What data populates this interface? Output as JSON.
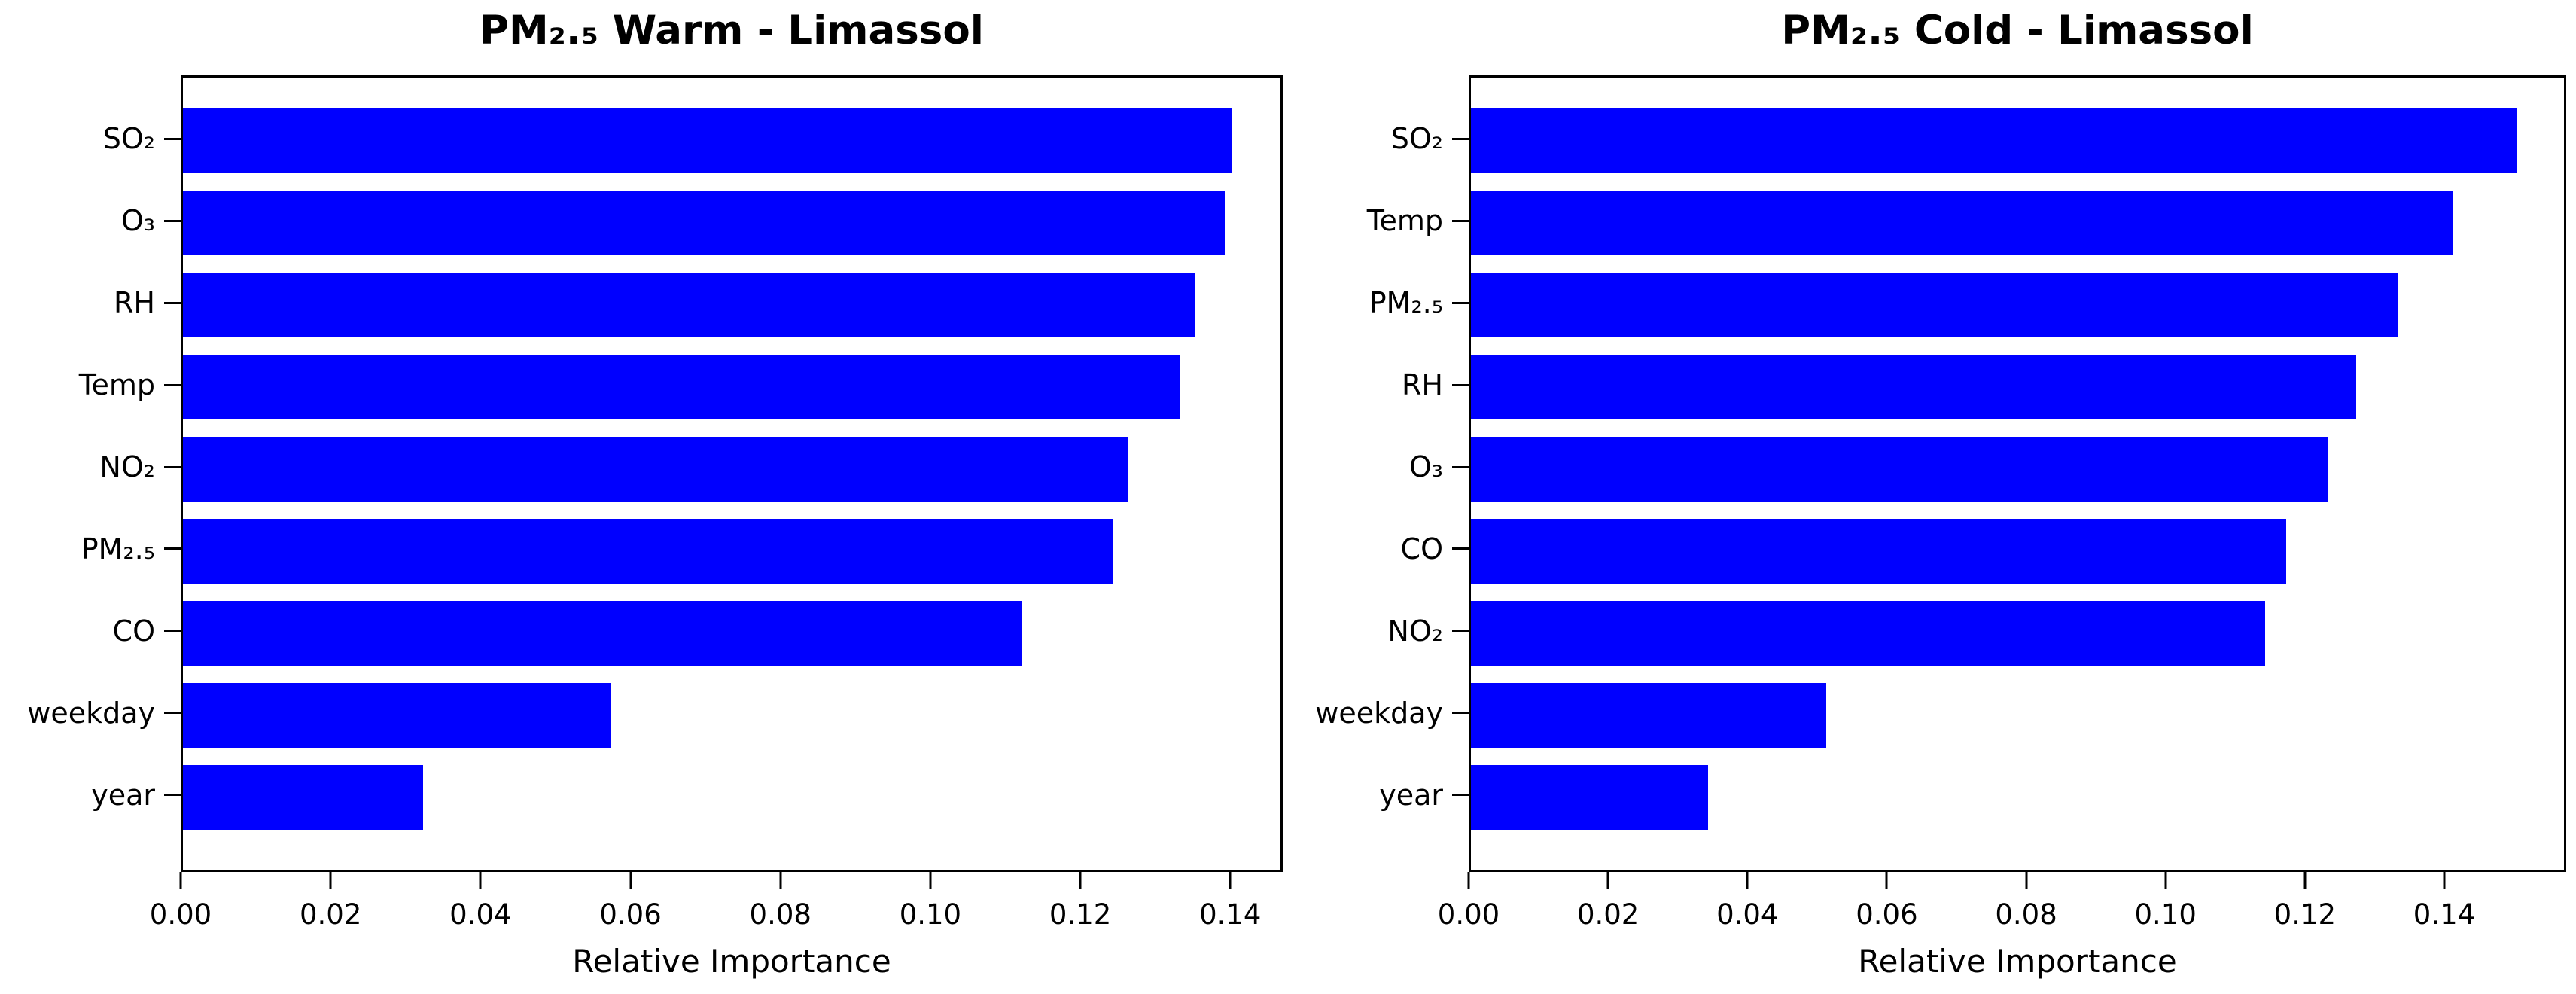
{
  "figure": {
    "background_color": "#ffffff",
    "axis_color": "#000000",
    "text_color": "#000000"
  },
  "chart_data": [
    {
      "type": "bar",
      "orientation": "horizontal",
      "title": "PM₂.₅ Warm - Limassol",
      "xlabel": "Relative Importance",
      "categories": [
        "SO₂",
        "O₃",
        "RH",
        "Temp",
        "NO₂",
        "PM₂.₅",
        "CO",
        "weekday",
        "year"
      ],
      "values": [
        0.14,
        0.139,
        0.135,
        0.133,
        0.126,
        0.124,
        0.112,
        0.057,
        0.032
      ],
      "bar_color": "#0000ff",
      "xlim": [
        0,
        0.147
      ],
      "xtick_values": [
        0.0,
        0.02,
        0.04,
        0.06,
        0.08,
        0.1,
        0.12,
        0.14
      ],
      "xtick_labels": [
        "0.00",
        "0.02",
        "0.04",
        "0.06",
        "0.08",
        "0.10",
        "0.12",
        "0.14"
      ],
      "grid": false,
      "legend": null
    },
    {
      "type": "bar",
      "orientation": "horizontal",
      "title": "PM₂.₅ Cold - Limassol",
      "xlabel": "Relative Importance",
      "categories": [
        "SO₂",
        "Temp",
        "PM₂.₅",
        "RH",
        "O₃",
        "CO",
        "NO₂",
        "weekday",
        "year"
      ],
      "values": [
        0.15,
        0.141,
        0.133,
        0.127,
        0.123,
        0.117,
        0.114,
        0.051,
        0.034
      ],
      "bar_color": "#0000ff",
      "xlim": [
        0,
        0.1575
      ],
      "xtick_values": [
        0.0,
        0.02,
        0.04,
        0.06,
        0.08,
        0.1,
        0.12,
        0.14
      ],
      "xtick_labels": [
        "0.00",
        "0.02",
        "0.04",
        "0.06",
        "0.08",
        "0.10",
        "0.12",
        "0.14"
      ],
      "grid": false,
      "legend": null
    }
  ]
}
